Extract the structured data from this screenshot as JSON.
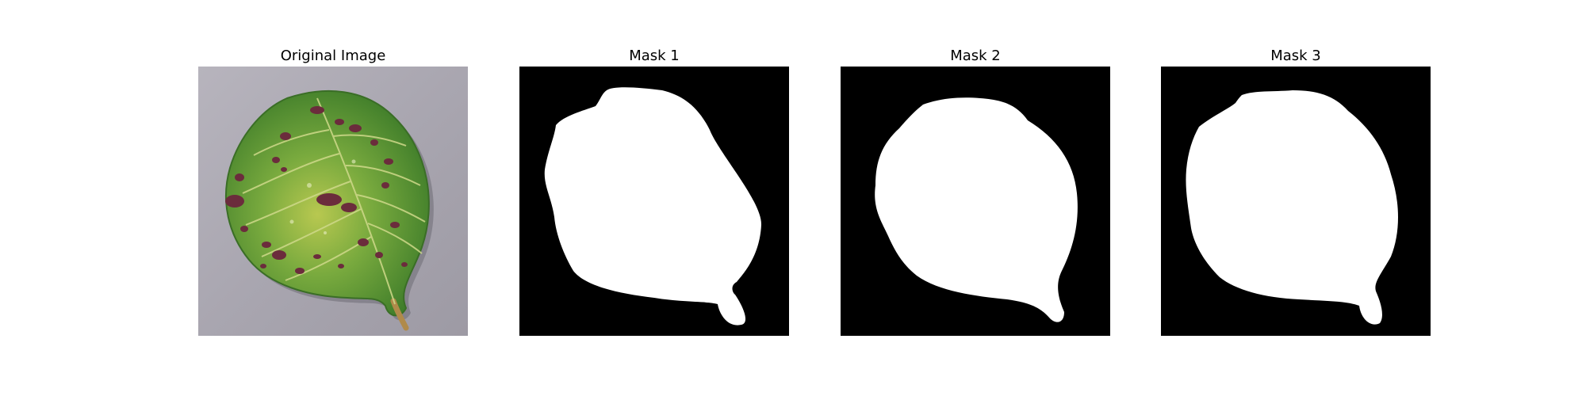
{
  "figure": {
    "panels": [
      {
        "title": "Original Image"
      },
      {
        "title": "Mask 1"
      },
      {
        "title": "Mask 2"
      },
      {
        "title": "Mask 3"
      }
    ]
  },
  "colors": {
    "background": "#ffffff",
    "mask_background": "#000000",
    "mask_foreground": "#ffffff",
    "leaf_green": "#5b9a3a",
    "leaf_yellow": "#a9c24a",
    "leaf_spot": "#6b2c3c",
    "table_surface": "#a9a6b0"
  }
}
